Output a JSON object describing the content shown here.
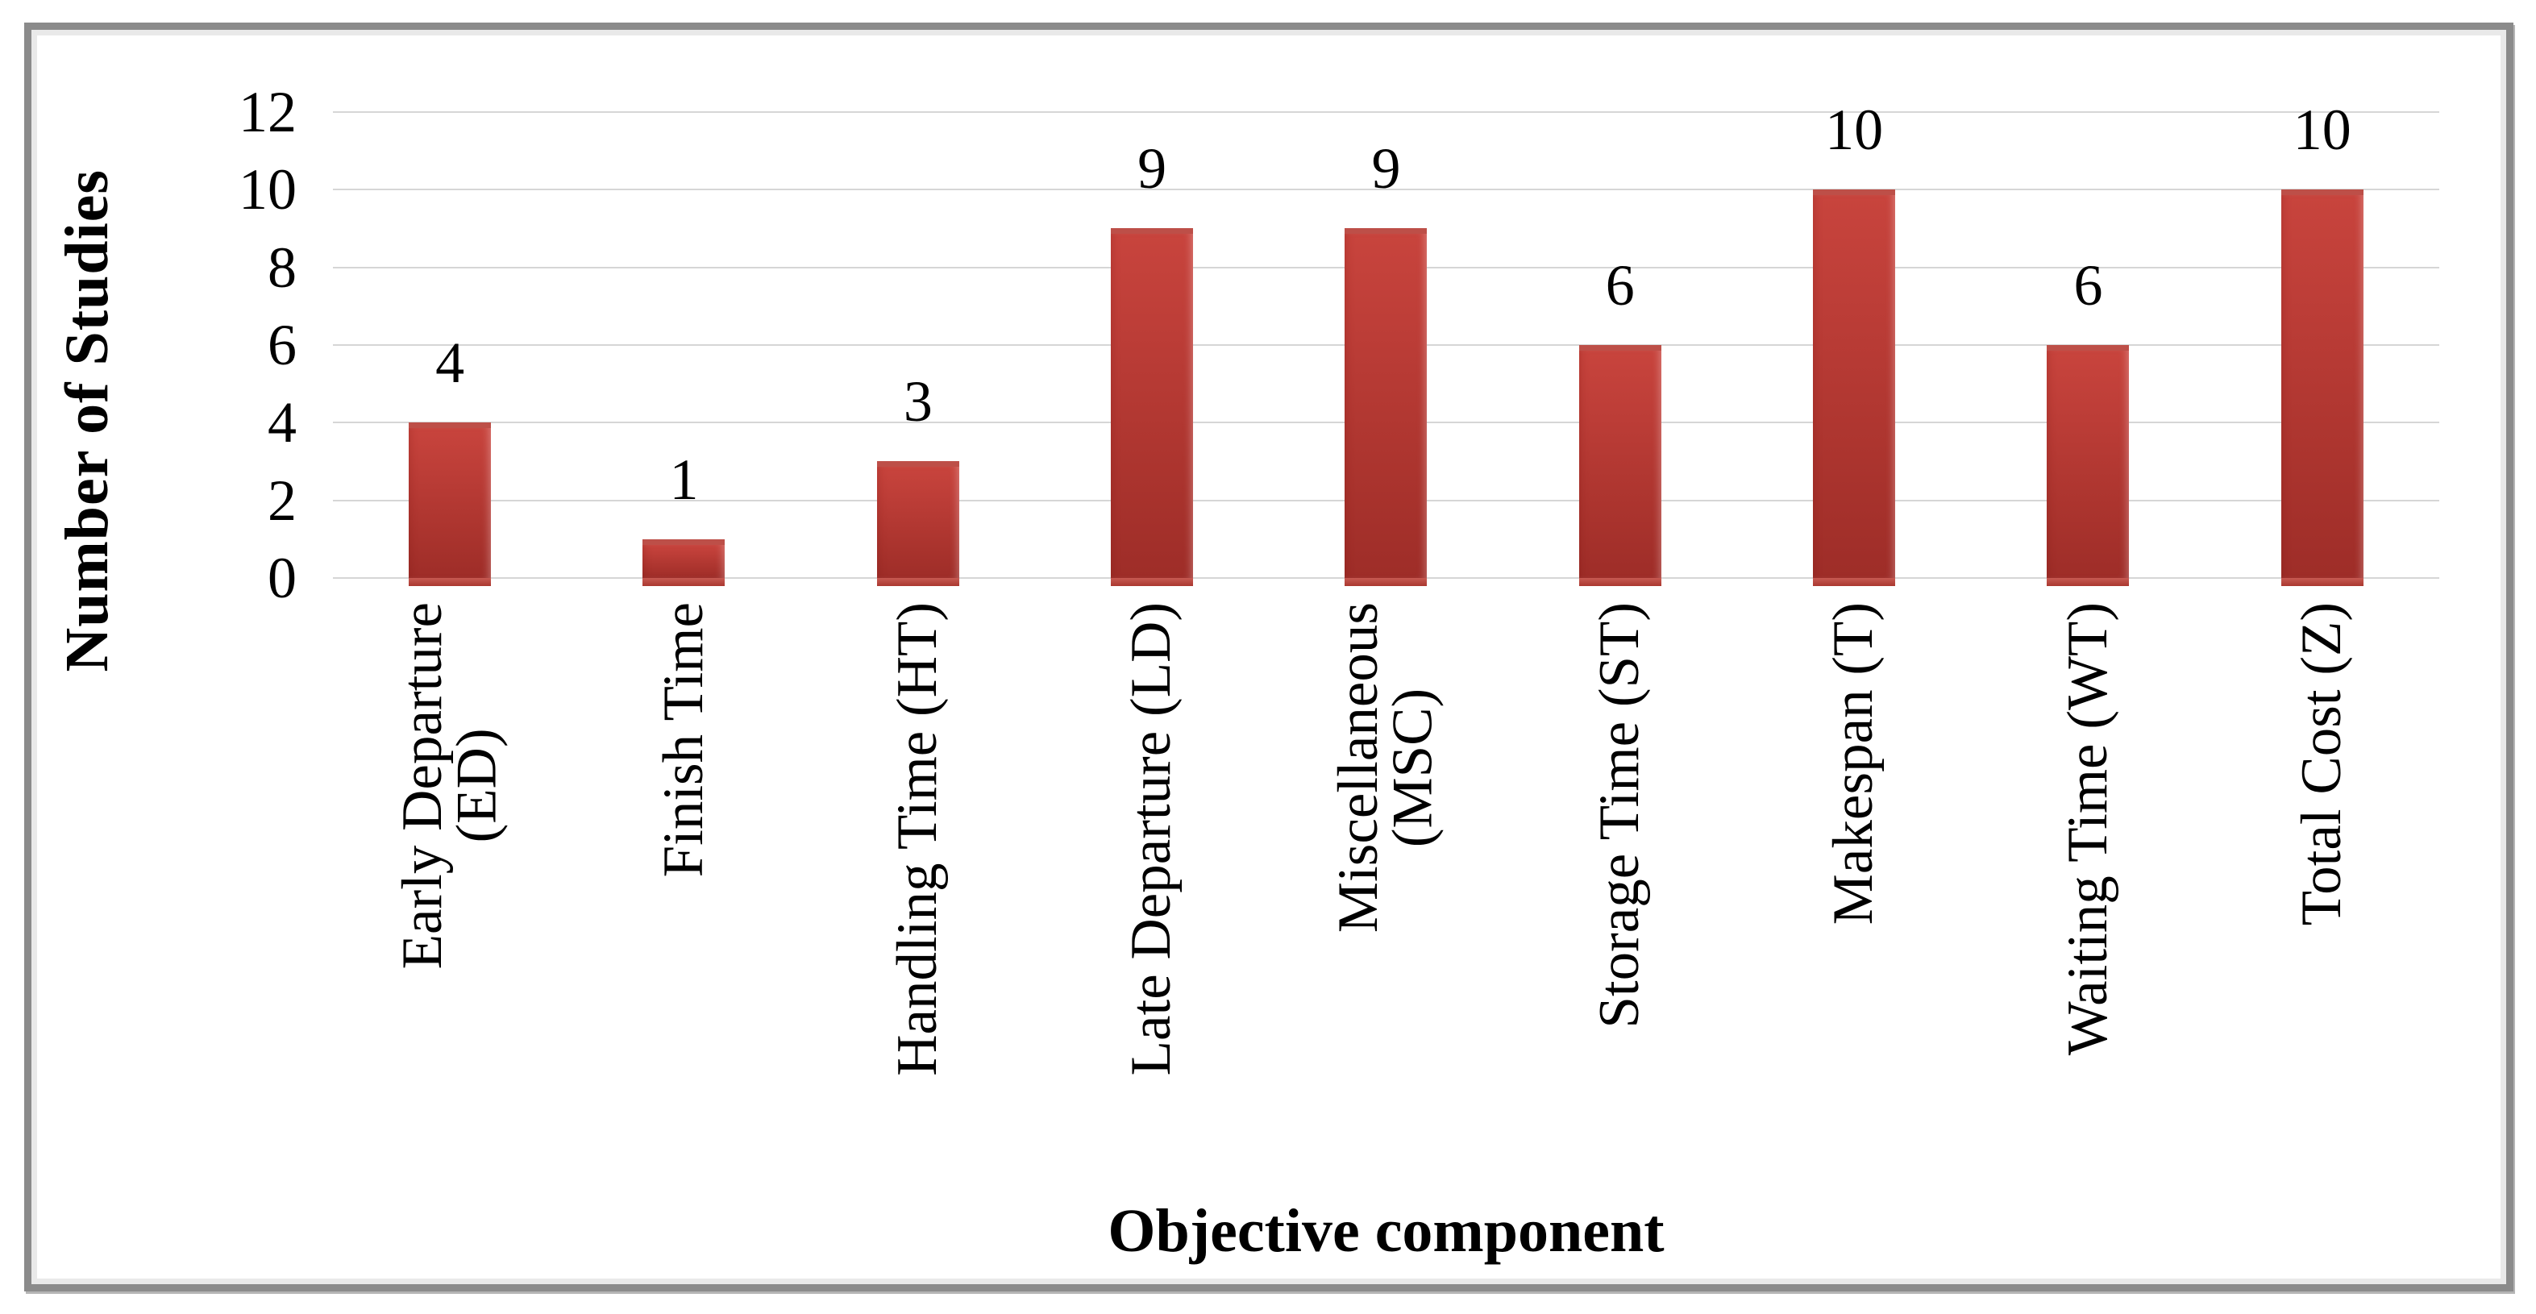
{
  "chart_data": {
    "type": "bar",
    "title": "",
    "xlabel": "Objective component",
    "ylabel": "Number of Studies",
    "categories": [
      "Early Departure\n(ED)",
      "Finish Time",
      "Handling Time (HT)",
      "Late Departure (LD)",
      "Miscellaneous\n(MSC)",
      "Storage Time (ST)",
      "Makespan (T)",
      "Waiting Time (WT)",
      "Total Cost (Z)"
    ],
    "values": [
      4,
      1,
      3,
      9,
      9,
      6,
      10,
      6,
      10
    ],
    "data_labels": [
      "4",
      "1",
      "3",
      "9",
      "9",
      "6",
      "10",
      "6",
      "10"
    ],
    "ylim": [
      0,
      12
    ],
    "yticks": [
      0,
      2,
      4,
      6,
      8,
      10,
      12
    ],
    "grid": "horizontal",
    "legend": "none",
    "bar_color_top": "#c8443d",
    "bar_color_bottom": "#9e2d28",
    "gridline_color": "#d6d6d6",
    "frame_border_color": "#8b8b8b"
  }
}
